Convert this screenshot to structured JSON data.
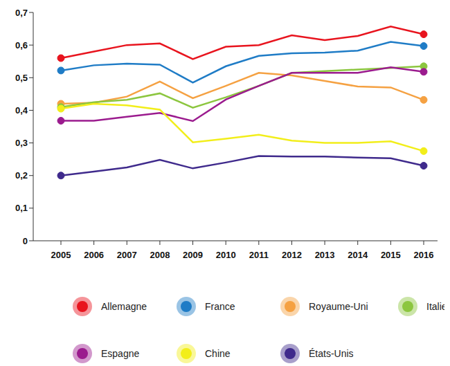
{
  "chart_data": {
    "type": "line",
    "categories": [
      "2005",
      "2006",
      "2007",
      "2008",
      "2009",
      "2010",
      "2011",
      "2012",
      "2013",
      "2014",
      "2015",
      "2016"
    ],
    "series": [
      {
        "name": "Allemagne",
        "color": "#e8141e",
        "values": [
          0.56,
          0.58,
          0.6,
          0.605,
          0.557,
          0.595,
          0.6,
          0.63,
          0.615,
          0.628,
          0.657,
          0.633
        ]
      },
      {
        "name": "France",
        "color": "#1f7cc6",
        "values": [
          0.522,
          0.538,
          0.543,
          0.54,
          0.485,
          0.535,
          0.567,
          0.575,
          0.577,
          0.583,
          0.61,
          0.597
        ]
      },
      {
        "name": "Royaume-Uni",
        "color": "#f5a142",
        "values": [
          0.42,
          0.423,
          0.442,
          0.488,
          0.437,
          0.475,
          0.515,
          0.507,
          0.49,
          0.473,
          0.47,
          0.432
        ]
      },
      {
        "name": "Italie",
        "color": "#8cc63f",
        "values": [
          0.41,
          0.425,
          0.432,
          0.452,
          0.408,
          0.44,
          0.475,
          0.515,
          0.52,
          0.525,
          0.53,
          0.535
        ]
      },
      {
        "name": "Espagne",
        "color": "#9b1b8e",
        "values": [
          0.368,
          0.368,
          0.38,
          0.392,
          0.367,
          0.433,
          0.475,
          0.515,
          0.515,
          0.515,
          0.532,
          0.518
        ]
      },
      {
        "name": "Chine",
        "color": "#f2ee1a",
        "values": [
          0.405,
          0.42,
          0.415,
          0.402,
          0.302,
          0.313,
          0.325,
          0.307,
          0.3,
          0.3,
          0.305,
          0.275
        ]
      },
      {
        "name": "États-Unis",
        "color": "#3f2a8c",
        "values": [
          0.2,
          0.212,
          0.225,
          0.248,
          0.222,
          0.24,
          0.26,
          0.258,
          0.258,
          0.255,
          0.253,
          0.23
        ]
      }
    ],
    "ylim": [
      0,
      0.7
    ],
    "yticks": [
      0,
      {
        "value": 0.1,
        "label": "0,1"
      },
      {
        "value": 0.2,
        "label": "0,2"
      },
      {
        "value": 0.3,
        "label": "0,3"
      },
      {
        "value": 0.4,
        "label": "0,4"
      },
      {
        "value": 0.5,
        "label": "0,5"
      },
      {
        "value": 0.6,
        "label": "0,6"
      },
      {
        "value": 0.7,
        "label": "0,7"
      }
    ],
    "grid": false,
    "legend": "bottom",
    "marker": "endpoints"
  }
}
